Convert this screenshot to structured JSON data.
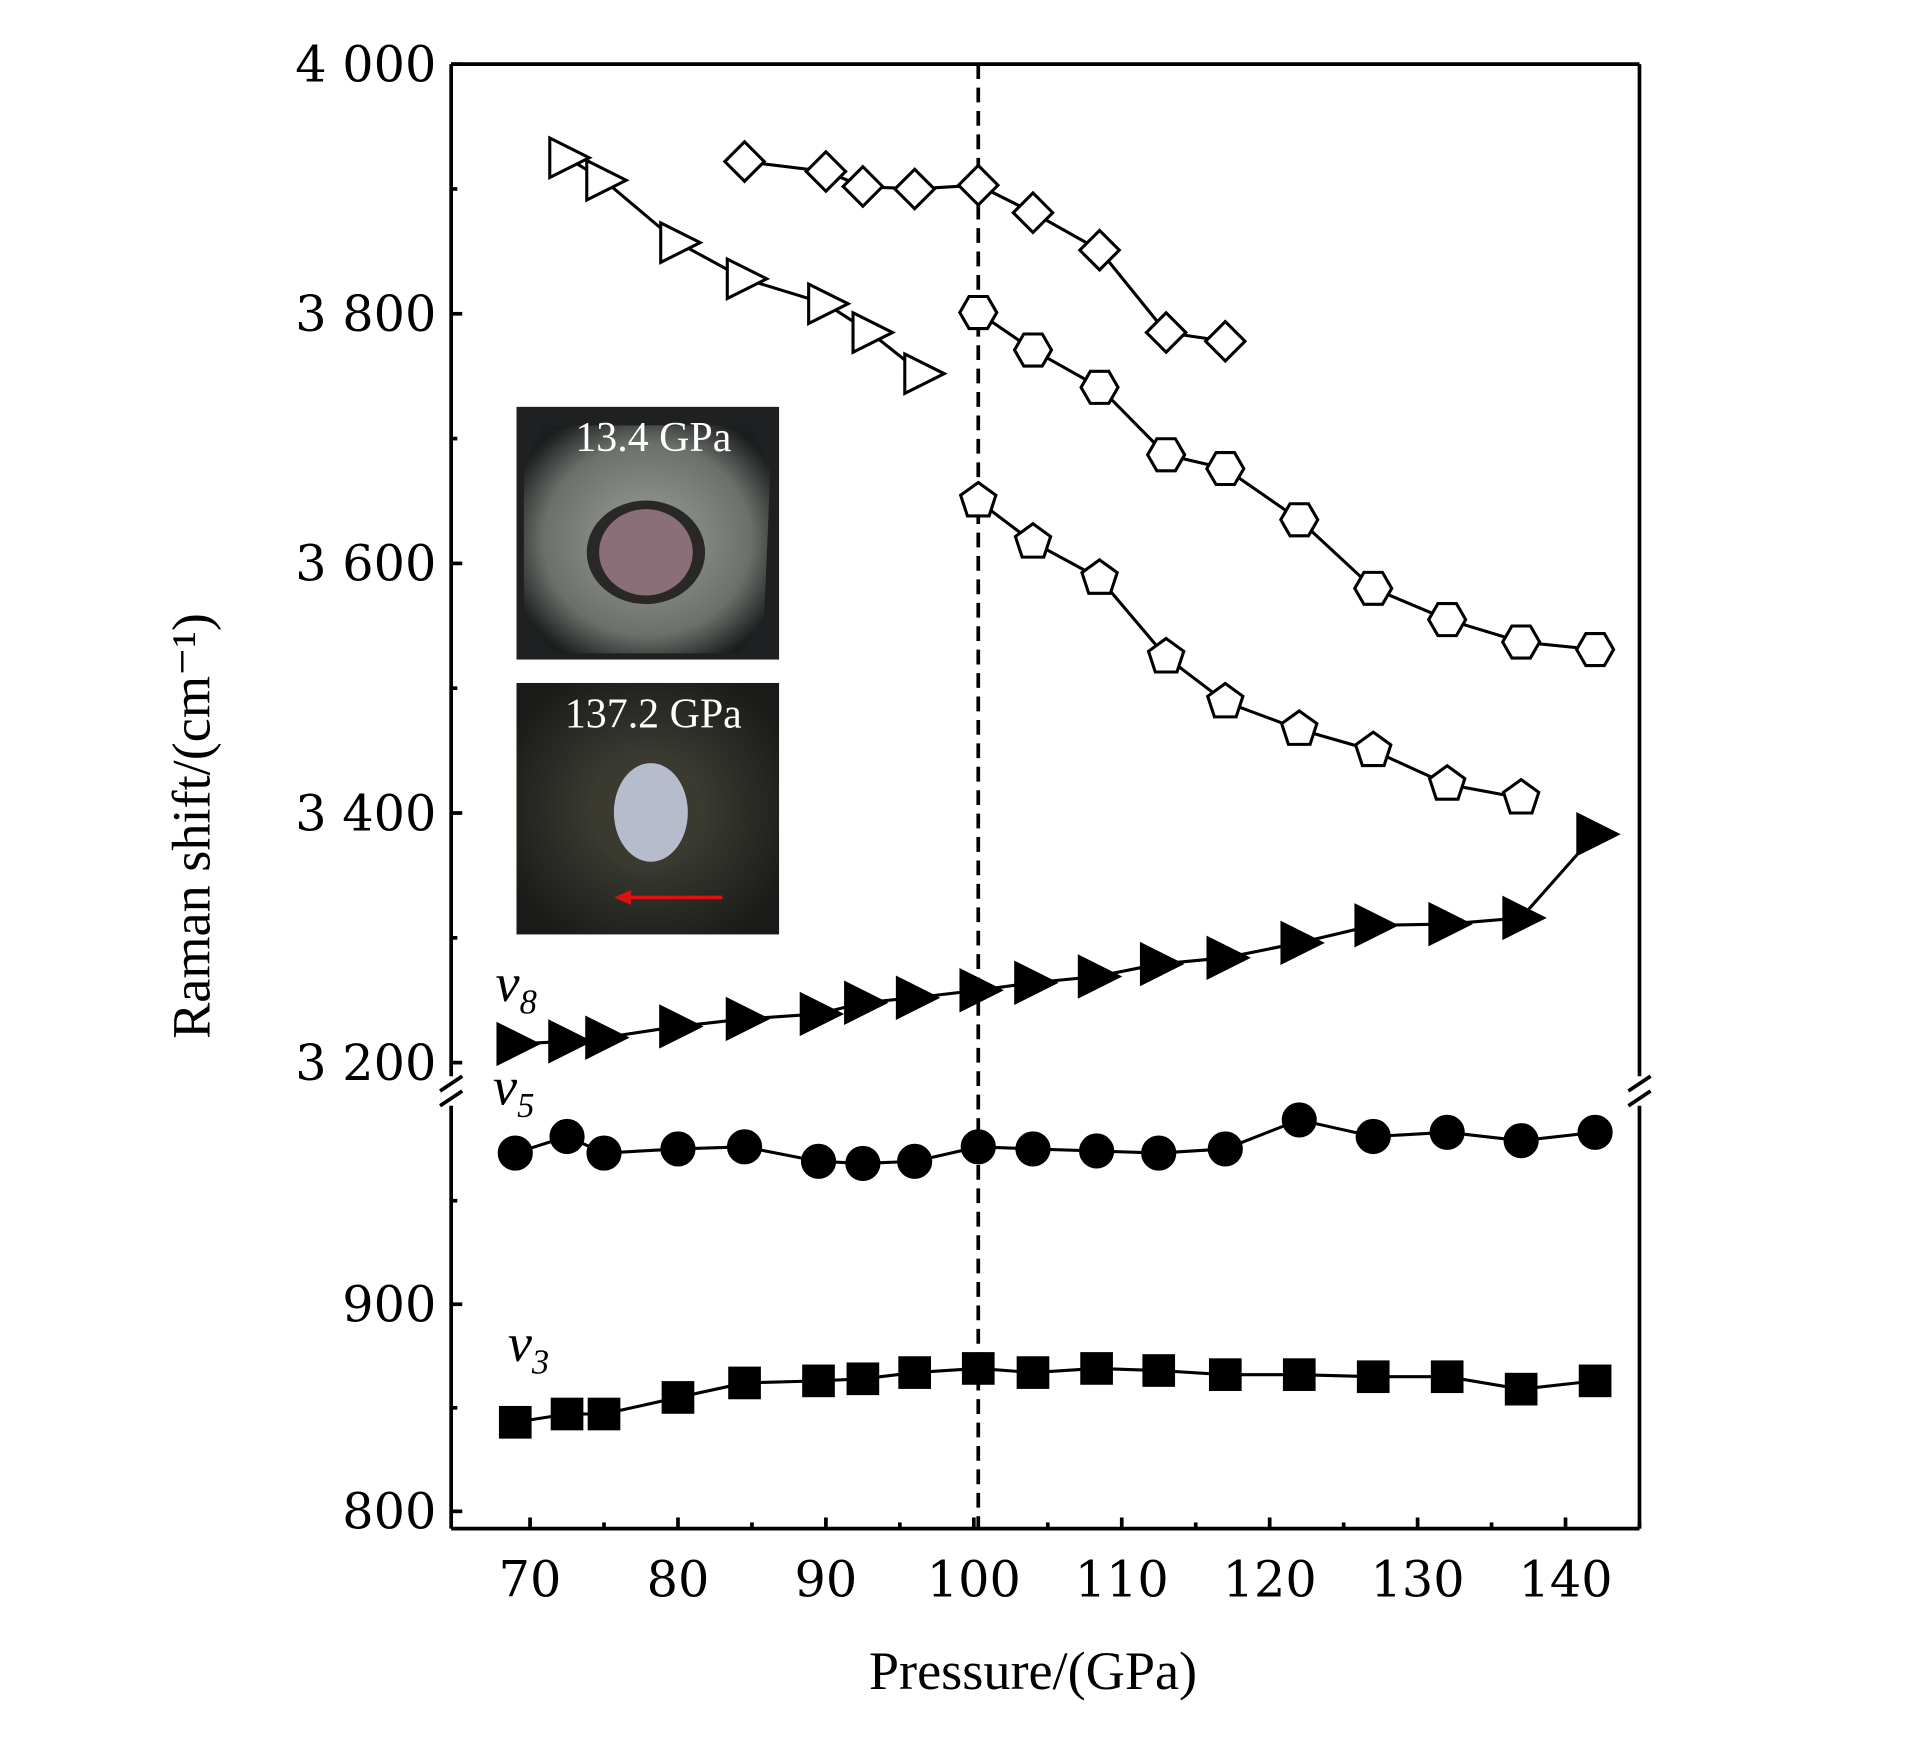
{
  "chart_data": {
    "type": "scatter",
    "title": "",
    "xlabel": "Pressure/(GPa)",
    "ylabel": "Raman shift/(cm⁻¹)",
    "xlim": [
      65,
      145
    ],
    "ylim_upper": [
      3180,
      4000
    ],
    "ylim_lower": [
      800,
      1000
    ],
    "y_axis_break": true,
    "xticks": [
      "70",
      "80",
      "90",
      "100",
      "110",
      "120",
      "130",
      "140"
    ],
    "xtick_values": [
      70,
      80,
      90,
      100,
      110,
      120,
      130,
      140
    ],
    "yticks_upper": [
      "4 000",
      "3 800",
      "3 600",
      "3 400",
      "3 200"
    ],
    "ytick_values_upper": [
      4000,
      3800,
      3600,
      3400,
      3200
    ],
    "yticks_lower": [
      "900",
      "800"
    ],
    "ytick_values_lower": [
      900,
      800
    ],
    "vertical_reference_line": 100.3,
    "series": [
      {
        "name": "open-right-triangle",
        "marker": "triangle-right-open",
        "axis": "upper",
        "x": [
          72.5,
          75,
          80,
          84.5,
          90,
          93,
          96.5
        ],
        "y": [
          3925,
          3907,
          3857,
          3828,
          3808,
          3785,
          3752
        ]
      },
      {
        "name": "open-diamond",
        "marker": "diamond-open",
        "axis": "upper",
        "x": [
          84.5,
          90,
          92.5,
          96,
          100.3,
          104,
          108.5,
          113,
          117
        ],
        "y": [
          3922,
          3914,
          3902,
          3900,
          3903,
          3881,
          3851,
          3785,
          3778
        ]
      },
      {
        "name": "open-hexagon",
        "marker": "hexagon-open",
        "axis": "upper",
        "x": [
          100.3,
          104,
          108.5,
          113,
          117,
          122,
          127,
          132,
          137,
          142
        ],
        "y": [
          3801,
          3771,
          3741,
          3687,
          3676,
          3635,
          3580,
          3555,
          3537,
          3531
        ]
      },
      {
        "name": "open-pentagon",
        "marker": "pentagon-open",
        "axis": "upper",
        "x": [
          100.3,
          104,
          108.5,
          113,
          117,
          122,
          127,
          132,
          137
        ],
        "y": [
          3650,
          3617,
          3588,
          3525,
          3489,
          3467,
          3450,
          3423,
          3412
        ]
      },
      {
        "name": "v8",
        "label": "v",
        "subscript": "8",
        "marker": "triangle-right-filled",
        "axis": "upper",
        "x": [
          69,
          72.5,
          75,
          80,
          84.5,
          89.5,
          92.5,
          96,
          100.3,
          104,
          108.3,
          112.5,
          117,
          122,
          127,
          132,
          137,
          142
        ],
        "y": [
          3215,
          3217,
          3220,
          3229,
          3235,
          3239,
          3248,
          3252,
          3258,
          3264,
          3269,
          3279,
          3284,
          3296,
          3310,
          3311,
          3316,
          3383
        ]
      },
      {
        "name": "v5",
        "label": "v",
        "subscript": "5",
        "marker": "circle-filled",
        "axis": "lower",
        "x": [
          69,
          72.5,
          75,
          80,
          84.5,
          89.5,
          92.5,
          96,
          100.3,
          104,
          108.3,
          112.5,
          117,
          122,
          127,
          132,
          137,
          142
        ],
        "y": [
          973,
          981,
          973,
          975,
          976,
          969,
          968,
          969,
          976,
          975,
          974,
          973,
          975,
          989,
          981,
          983,
          979,
          983
        ]
      },
      {
        "name": "v3",
        "label": "v",
        "subscript": "3",
        "marker": "square-filled",
        "axis": "lower",
        "x": [
          69,
          72.5,
          75,
          80,
          84.5,
          89.5,
          92.5,
          96,
          100.3,
          104,
          108.3,
          112.5,
          117,
          122,
          127,
          132,
          137,
          142
        ],
        "y": [
          843,
          847,
          847,
          855,
          862,
          863,
          864,
          867,
          869,
          867,
          869,
          868,
          866,
          866,
          865,
          865,
          859,
          863
        ]
      }
    ],
    "insets": [
      {
        "label": "13.4 GPa"
      },
      {
        "label": "137.2 GPa"
      }
    ],
    "colors": {
      "marker": "#000000",
      "inset_arrow": "#e01010"
    }
  }
}
